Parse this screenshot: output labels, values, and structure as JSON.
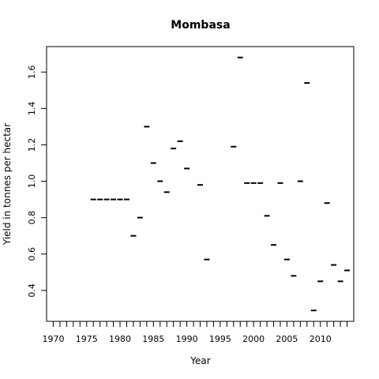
{
  "chart_data": {
    "type": "scatter",
    "title": "Mombasa",
    "xlabel": "Year",
    "ylabel": "Yield in tonnes per hectar",
    "xlim": [
      1969,
      2015
    ],
    "ylim": [
      0.23,
      1.74
    ],
    "x_ticks_major": [
      1970,
      1975,
      1980,
      1985,
      1990,
      1995,
      2000,
      2005,
      2010
    ],
    "x_ticks_minor": [
      1970,
      1971,
      1972,
      1973,
      1974,
      1975,
      1976,
      1977,
      1978,
      1979,
      1980,
      1981,
      1982,
      1983,
      1984,
      1985,
      1986,
      1987,
      1988,
      1989,
      1990,
      1991,
      1992,
      1993,
      1994,
      1995,
      1996,
      1997,
      1998,
      1999,
      2000,
      2001,
      2002,
      2003,
      2004,
      2005,
      2006,
      2007,
      2008,
      2009,
      2010,
      2011,
      2012,
      2013,
      2014
    ],
    "y_ticks": [
      0.4,
      0.6,
      0.8,
      1.0,
      1.2,
      1.4,
      1.6
    ],
    "y_tick_labels": [
      "0.4",
      "0.6",
      "0.8",
      "1.0",
      "1.2",
      "1.4",
      "1.6"
    ],
    "marker": "dash",
    "color": "#000000",
    "x": [
      1976,
      1977,
      1978,
      1979,
      1980,
      1981,
      1982,
      1983,
      1984,
      1985,
      1986,
      1987,
      1988,
      1989,
      1990,
      1992,
      1993,
      1997,
      1998,
      1999,
      2000,
      2001,
      2002,
      2003,
      2004,
      2005,
      2006,
      2007,
      2008,
      2009,
      2010,
      2011,
      2012,
      2013,
      2014
    ],
    "y": [
      0.9,
      0.9,
      0.9,
      0.9,
      0.9,
      0.9,
      0.7,
      0.8,
      1.3,
      1.1,
      1.0,
      0.94,
      1.18,
      1.22,
      1.07,
      0.98,
      0.57,
      1.19,
      1.68,
      0.99,
      0.99,
      0.99,
      0.81,
      0.65,
      0.99,
      0.57,
      0.48,
      1.0,
      1.54,
      0.29,
      0.45,
      0.88,
      0.54,
      0.45,
      0.51
    ]
  }
}
